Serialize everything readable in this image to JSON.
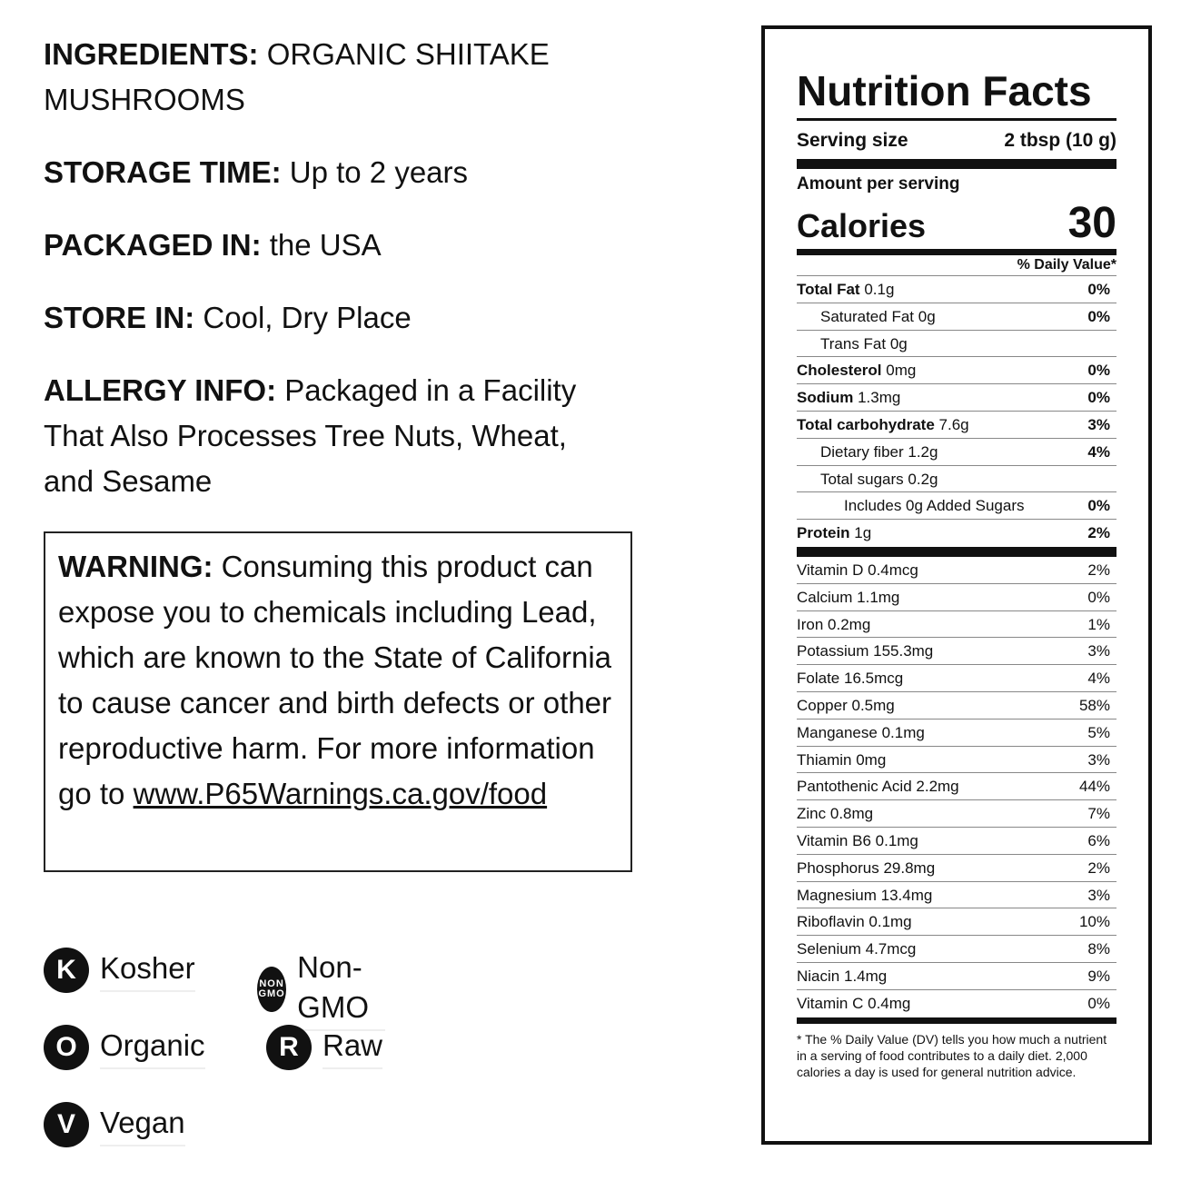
{
  "info": [
    {
      "label": "INGREDIENTS:",
      "text": "ORGANIC SHIITAKE MUSHROOMS"
    },
    {
      "label": "STORAGE TIME:",
      "text": "Up to 2 years"
    },
    {
      "label": "PACKAGED IN:",
      "text": "the USA"
    },
    {
      "label": "STORE IN:",
      "text": "Cool, Dry Place"
    },
    {
      "label": "ALLERGY INFO:",
      "text": "Packaged in a Facility That Also Processes Tree Nuts, Wheat, and Sesame"
    }
  ],
  "warning": {
    "label": "WARNING:",
    "text": "Consuming this product can expose you to chemicals including Lead, which are known to the State of California to cause cancer and birth defects or other reproductive harm. For more information go to",
    "link": "www.P65Warnings.ca.gov/food"
  },
  "badges": [
    [
      {
        "icon": "K",
        "label": "Kosher"
      },
      {
        "icon": "NON GMO",
        "label": "Non-GMO"
      }
    ],
    [
      {
        "icon": "O",
        "label": "Organic"
      },
      {
        "icon": "R",
        "label": "Raw"
      }
    ],
    [
      {
        "icon": "V",
        "label": "Vegan"
      }
    ]
  ],
  "nutrition": {
    "title": "Nutrition Facts",
    "serving_size_label": "Serving size",
    "serving_size": "2 tbsp (10 g)",
    "amount_per_serving": "Amount per serving",
    "calories_label": "Calories",
    "calories": 30,
    "daily_value_header": "% Daily Value*",
    "nutrients": [
      {
        "name": "Total Fat",
        "amount": "0.1g",
        "daily_value": "0%",
        "bold": true,
        "indent": 0
      },
      {
        "name": "Saturated Fat",
        "amount": "0g",
        "daily_value": "0%",
        "bold": false,
        "indent": 1
      },
      {
        "name": "Trans Fat",
        "amount": "0g",
        "daily_value": null,
        "bold": false,
        "indent": 1
      },
      {
        "name": "Cholesterol",
        "amount": "0mg",
        "daily_value": "0%",
        "bold": true,
        "indent": 0
      },
      {
        "name": "Sodium",
        "amount": "1.3mg",
        "daily_value": "0%",
        "bold": true,
        "indent": 0
      },
      {
        "name": "Total carbohydrate",
        "amount": "7.6g",
        "daily_value": "3%",
        "bold": true,
        "indent": 0
      },
      {
        "name": "Dietary fiber",
        "amount": "1.2g",
        "daily_value": "4%",
        "bold": false,
        "indent": 1
      },
      {
        "name": "Total sugars",
        "amount": "0.2g",
        "daily_value": null,
        "bold": false,
        "indent": 1
      },
      {
        "name": "Includes 0g Added Sugars",
        "amount": null,
        "daily_value": "0%",
        "bold": false,
        "indent": 2
      },
      {
        "name": "Protein",
        "amount": "1g",
        "daily_value": "2%",
        "bold": true,
        "indent": 0
      }
    ],
    "vitamins_minerals": [
      {
        "name": "Vitamin D",
        "amount": "0.4mcg",
        "daily_value": "2%"
      },
      {
        "name": "Calcium",
        "amount": "1.1mg",
        "daily_value": "0%"
      },
      {
        "name": "Iron",
        "amount": "0.2mg",
        "daily_value": "1%"
      },
      {
        "name": "Potassium",
        "amount": "155.3mg",
        "daily_value": "3%"
      },
      {
        "name": "Folate",
        "amount": "16.5mcg",
        "daily_value": "4%"
      },
      {
        "name": "Copper",
        "amount": "0.5mg",
        "daily_value": "58%"
      },
      {
        "name": "Manganese",
        "amount": "0.1mg",
        "daily_value": "5%"
      },
      {
        "name": "Thiamin",
        "amount": "0mg",
        "daily_value": "3%"
      },
      {
        "name": "Pantothenic Acid",
        "amount": "2.2mg",
        "daily_value": "44%"
      },
      {
        "name": "Zinc",
        "amount": "0.8mg",
        "daily_value": "7%"
      },
      {
        "name": "Vitamin B6",
        "amount": "0.1mg",
        "daily_value": "6%"
      },
      {
        "name": "Phosphorus",
        "amount": "29.8mg",
        "daily_value": "2%"
      },
      {
        "name": "Magnesium",
        "amount": "13.4mg",
        "daily_value": "3%"
      },
      {
        "name": "Riboflavin",
        "amount": "0.1mg",
        "daily_value": "10%"
      },
      {
        "name": "Selenium",
        "amount": "4.7mcg",
        "daily_value": "8%"
      },
      {
        "name": "Niacin",
        "amount": "1.4mg",
        "daily_value": "9%"
      },
      {
        "name": "Vitamin C",
        "amount": "0.4mg",
        "daily_value": "0%"
      }
    ],
    "footnote": "* The % Daily Value (DV) tells you how much a nutrient in a serving of food contributes to a daily diet. 2,000 calories a day is used for general nutrition advice."
  }
}
